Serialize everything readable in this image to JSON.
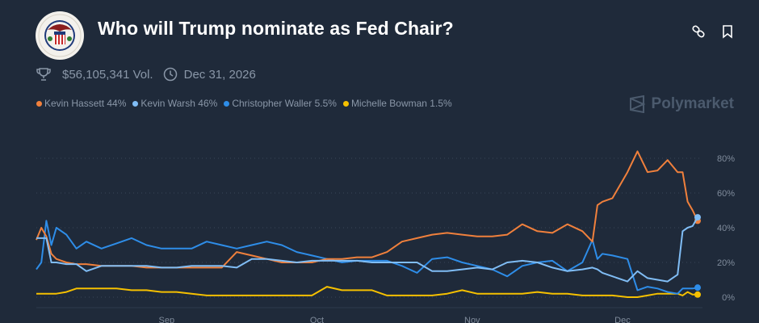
{
  "header": {
    "title": "Who will Trump nominate as Fed Chair?",
    "logo_icon": "federal-reserve-seal-icon",
    "actions": [
      {
        "name": "copy-link-button",
        "icon": "link-icon"
      },
      {
        "name": "bookmark-button",
        "icon": "bookmark-icon"
      }
    ]
  },
  "meta": {
    "volume": "$56,105,341 Vol.",
    "end_date": "Dec 31, 2026",
    "volume_icon": "trophy-icon",
    "date_icon": "clock-icon"
  },
  "brand": {
    "label": "Polymarket"
  },
  "colors": {
    "background": "#1f2a3a",
    "hassett": "#f0803c",
    "warsh": "#80bdf5",
    "waller": "#2e8de8",
    "bowman": "#f5c000"
  },
  "chart_data": {
    "type": "line",
    "title": "Who will Trump nominate as Fed Chair?",
    "xlabel": "",
    "ylabel": "",
    "x_unit": "day index (0 = approx. Aug 6; tick months: Sep, Oct, Nov, Dec)",
    "x_ticks": [
      {
        "label": "Sep",
        "x": 26
      },
      {
        "label": "Oct",
        "x": 56
      },
      {
        "label": "Nov",
        "x": 87
      },
      {
        "label": "Dec",
        "x": 117
      }
    ],
    "y_ticks": [
      "0%",
      "20%",
      "40%",
      "60%",
      "80%"
    ],
    "ylim": [
      0,
      85
    ],
    "xlim": [
      0,
      132
    ],
    "grid": true,
    "legend_position": "top-left",
    "legend": [
      {
        "label": "Kevin Hassett 44%",
        "color": "#f0803c"
      },
      {
        "label": "Kevin Warsh 46%",
        "color": "#80bdf5"
      },
      {
        "label": "Christopher Waller 5.5%",
        "color": "#2e8de8"
      },
      {
        "label": "Michelle Bowman 1.5%",
        "color": "#f5c000"
      }
    ],
    "x": [
      0,
      1,
      2,
      3,
      4,
      6,
      8,
      10,
      13,
      16,
      19,
      22,
      25,
      28,
      31,
      34,
      37,
      40,
      43,
      46,
      49,
      52,
      55,
      58,
      61,
      64,
      67,
      70,
      73,
      76,
      79,
      82,
      85,
      88,
      91,
      94,
      97,
      100,
      103,
      106,
      109,
      111,
      112,
      113,
      115,
      118,
      120,
      122,
      124,
      126,
      128,
      129,
      130,
      131,
      132
    ],
    "series": [
      {
        "name": "Kevin Hassett",
        "current": "44%",
        "color": "#f0803c",
        "values": [
          33,
          40,
          35,
          25,
          22,
          20,
          19,
          19,
          18,
          18,
          18,
          17,
          17,
          17,
          17,
          17,
          17,
          26,
          24,
          22,
          20,
          20,
          20,
          22,
          22,
          23,
          23,
          26,
          32,
          34,
          36,
          37,
          36,
          35,
          35,
          36,
          42,
          38,
          37,
          42,
          38,
          32,
          53,
          55,
          57,
          72,
          84,
          72,
          73,
          79,
          72,
          72,
          55,
          50,
          44
        ]
      },
      {
        "name": "Kevin Warsh",
        "current": "46%",
        "color": "#80bdf5",
        "values": [
          34,
          34,
          34,
          20,
          20,
          19,
          19,
          15,
          18,
          18,
          18,
          18,
          17,
          17,
          18,
          18,
          18,
          17,
          22,
          22,
          21,
          20,
          21,
          21,
          21,
          21,
          20,
          20,
          20,
          20,
          15,
          15,
          16,
          17,
          16,
          20,
          21,
          20,
          17,
          15,
          16,
          17,
          16,
          14,
          12,
          9,
          15,
          11,
          10,
          9,
          13,
          38,
          40,
          41,
          46
        ]
      },
      {
        "name": "Christopher Waller",
        "current": "5.5%",
        "color": "#2e8de8",
        "values": [
          16,
          20,
          44,
          30,
          40,
          36,
          28,
          32,
          28,
          31,
          34,
          30,
          28,
          28,
          28,
          32,
          30,
          28,
          30,
          32,
          30,
          26,
          24,
          22,
          20,
          21,
          21,
          21,
          18,
          14,
          22,
          23,
          20,
          18,
          16,
          12,
          18,
          20,
          21,
          15,
          20,
          33,
          22,
          25,
          24,
          22,
          4,
          6,
          5,
          3,
          2,
          5,
          5,
          5,
          5.5
        ]
      },
      {
        "name": "Michelle Bowman",
        "current": "1.5%",
        "color": "#f5c000",
        "values": [
          2,
          2,
          2,
          2,
          2,
          3,
          5,
          5,
          5,
          5,
          4,
          4,
          3,
          3,
          2,
          1,
          1,
          1,
          1,
          1,
          1,
          1,
          1,
          6,
          4,
          4,
          4,
          1,
          1,
          1,
          1,
          2,
          4,
          2,
          2,
          2,
          2,
          3,
          2,
          2,
          1,
          1,
          1,
          1,
          1,
          0,
          0,
          1,
          2,
          2,
          2,
          1,
          3,
          1.5,
          1.5
        ]
      }
    ]
  }
}
